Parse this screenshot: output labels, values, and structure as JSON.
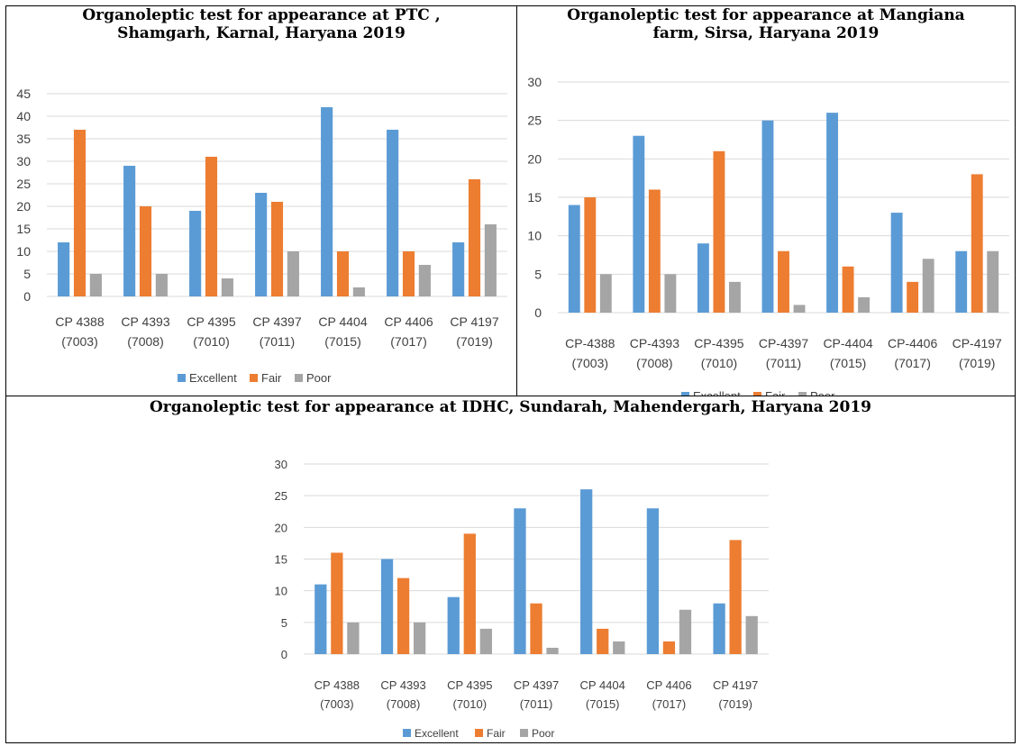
{
  "legend": [
    "Excellent",
    "Fair",
    "Poor"
  ],
  "colors": {
    "excellent": "#5B9BD5",
    "fair": "#ED7D31",
    "poor": "#A5A5A5",
    "grid": "#D9D9D9",
    "axis_text": "#404040"
  },
  "panels": [
    {
      "title_line1": "Organoleptic test for appearance at PTC ,",
      "title_line2": "Shamgarh, Karnal, Haryana 2019"
    },
    {
      "title_line1": "Organoleptic test for appearance at Mangiana",
      "title_line2": "farm, Sirsa, Haryana 2019"
    },
    {
      "title_line1": "Organoleptic test for appearance at IDHC, Sundarah, Mahendergarh, Haryana 2019",
      "title_line2": ""
    }
  ],
  "chart_data": [
    {
      "type": "bar",
      "categories": [
        [
          "CP 4388",
          "(7003)"
        ],
        [
          "CP 4393",
          "(7008)"
        ],
        [
          "CP 4395",
          "(7010)"
        ],
        [
          "CP 4397",
          "(7011)"
        ],
        [
          "CP 4404",
          "(7015)"
        ],
        [
          "CP 4406",
          "(7017)"
        ],
        [
          "CP 4197",
          "(7019)"
        ]
      ],
      "series": [
        {
          "name": "Excellent",
          "values": [
            12,
            29,
            19,
            23,
            42,
            37,
            12
          ]
        },
        {
          "name": "Fair",
          "values": [
            37,
            20,
            31,
            21,
            10,
            10,
            26
          ]
        },
        {
          "name": "Poor",
          "values": [
            5,
            5,
            4,
            10,
            2,
            7,
            16
          ]
        }
      ],
      "ylim": [
        0,
        45
      ],
      "yticks": [
        "0",
        "5",
        "10",
        "15",
        "20",
        "25",
        "30",
        "35",
        "40",
        "45"
      ],
      "grid": true,
      "legend_position": "bottom"
    },
    {
      "type": "bar",
      "categories": [
        [
          "CP-4388",
          "(7003)"
        ],
        [
          "CP-4393",
          "(7008)"
        ],
        [
          "CP-4395",
          "(7010)"
        ],
        [
          "CP-4397",
          "(7011)"
        ],
        [
          "CP-4404",
          "(7015)"
        ],
        [
          "CP-4406",
          "(7017)"
        ],
        [
          "CP-4197",
          "(7019)"
        ]
      ],
      "series": [
        {
          "name": "Excellent",
          "values": [
            14,
            23,
            9,
            25,
            26,
            13,
            8
          ]
        },
        {
          "name": "Fair",
          "values": [
            15,
            16,
            21,
            8,
            6,
            4,
            18
          ]
        },
        {
          "name": "Poor",
          "values": [
            5,
            5,
            4,
            1,
            2,
            7,
            8
          ]
        }
      ],
      "ylim": [
        0,
        30
      ],
      "yticks": [
        "0",
        "5",
        "10",
        "15",
        "20",
        "25",
        "30"
      ],
      "grid": true,
      "legend_position": "bottom"
    },
    {
      "type": "bar",
      "categories": [
        [
          "CP 4388",
          "(7003)"
        ],
        [
          "CP 4393",
          "(7008)"
        ],
        [
          "CP 4395",
          "(7010)"
        ],
        [
          "CP 4397",
          "(7011)"
        ],
        [
          "CP 4404",
          "(7015)"
        ],
        [
          "CP 4406",
          "(7017)"
        ],
        [
          "CP 4197",
          "(7019)"
        ]
      ],
      "series": [
        {
          "name": "Excellent",
          "values": [
            11,
            15,
            9,
            23,
            26,
            23,
            8
          ]
        },
        {
          "name": "Fair",
          "values": [
            16,
            12,
            19,
            8,
            4,
            2,
            18
          ]
        },
        {
          "name": "Poor",
          "values": [
            5,
            5,
            4,
            1,
            2,
            7,
            6
          ]
        }
      ],
      "ylim": [
        0,
        30
      ],
      "yticks": [
        "0",
        "5",
        "10",
        "15",
        "20",
        "25",
        "30"
      ],
      "grid": true,
      "legend_position": "bottom"
    }
  ]
}
